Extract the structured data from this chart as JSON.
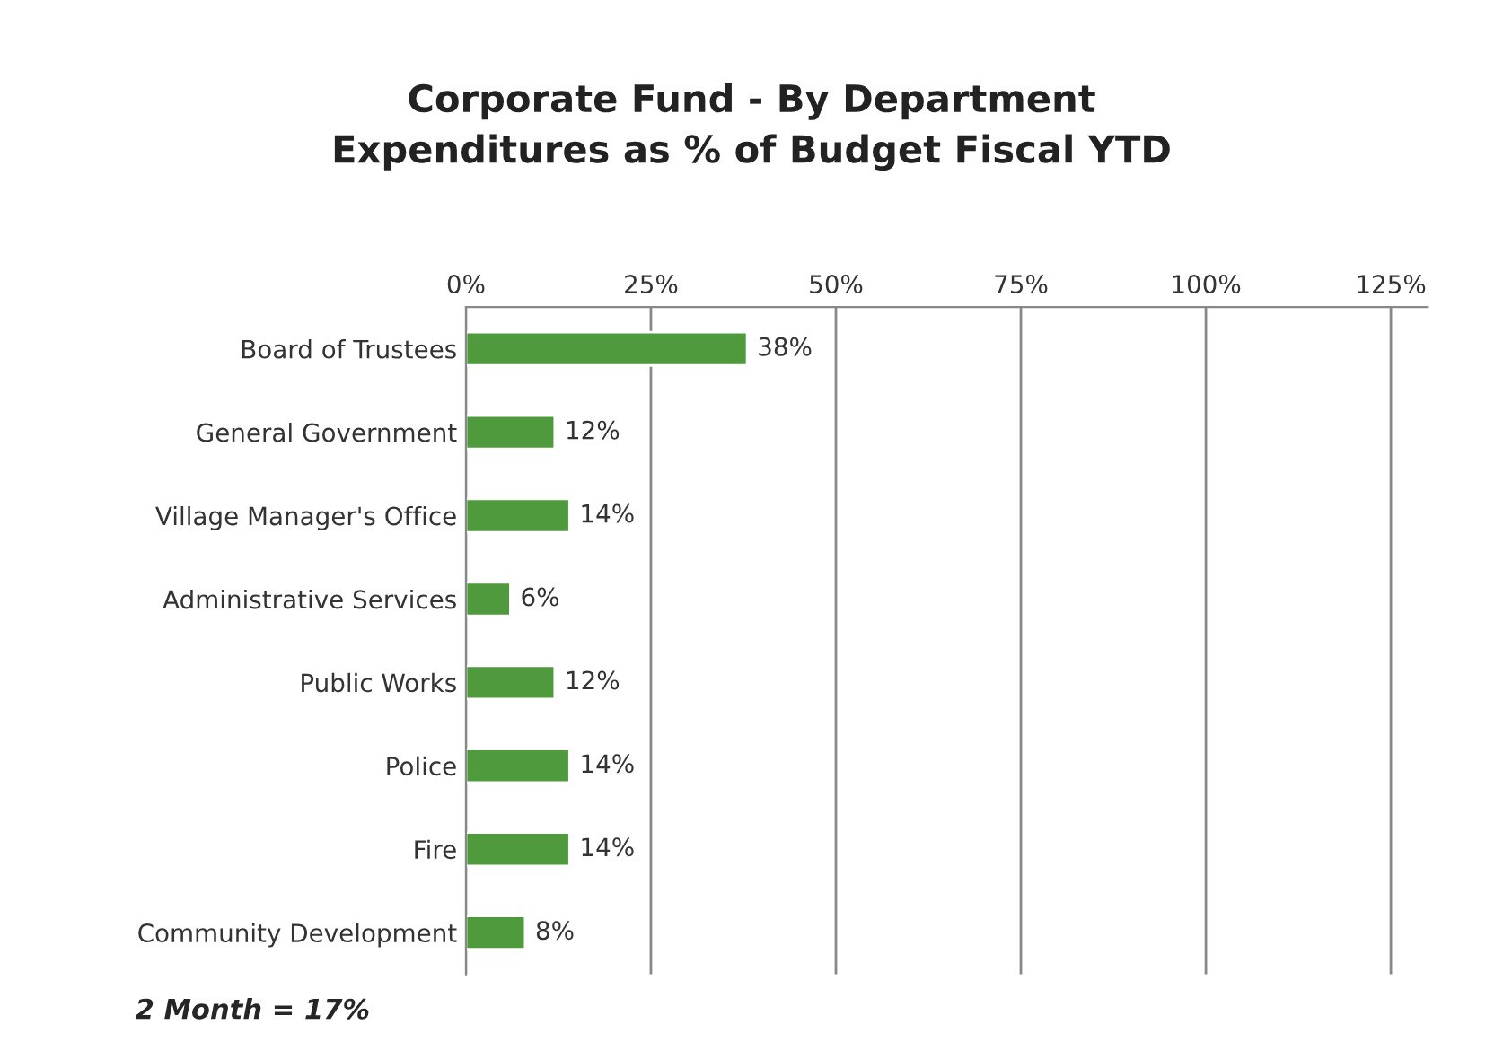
{
  "chart_data": {
    "type": "bar",
    "orientation": "horizontal",
    "title": "Corporate Fund - By Department\nExpenditures as % of Budget Fiscal YTD",
    "categories": [
      "Board of Trustees",
      "General Government",
      "Village Manager's Office",
      "Administrative Services",
      "Public Works",
      "Police",
      "Fire",
      "Community Development"
    ],
    "values": [
      38,
      12,
      14,
      6,
      12,
      14,
      14,
      8
    ],
    "value_labels": [
      "38%",
      "12%",
      "14%",
      "6%",
      "12%",
      "14%",
      "14%",
      "8%"
    ],
    "color": "#4f9a3c",
    "xlim": [
      0,
      130
    ],
    "xticks": [
      {
        "value": 0,
        "label": "0%"
      },
      {
        "value": 25,
        "label": "25%"
      },
      {
        "value": 50,
        "label": "50%"
      },
      {
        "value": 75,
        "label": "75%"
      },
      {
        "value": 100,
        "label": "100%"
      },
      {
        "value": 125,
        "label": "125%"
      }
    ],
    "grid": "x",
    "annotations": [
      "2 Month = 17%"
    ]
  }
}
